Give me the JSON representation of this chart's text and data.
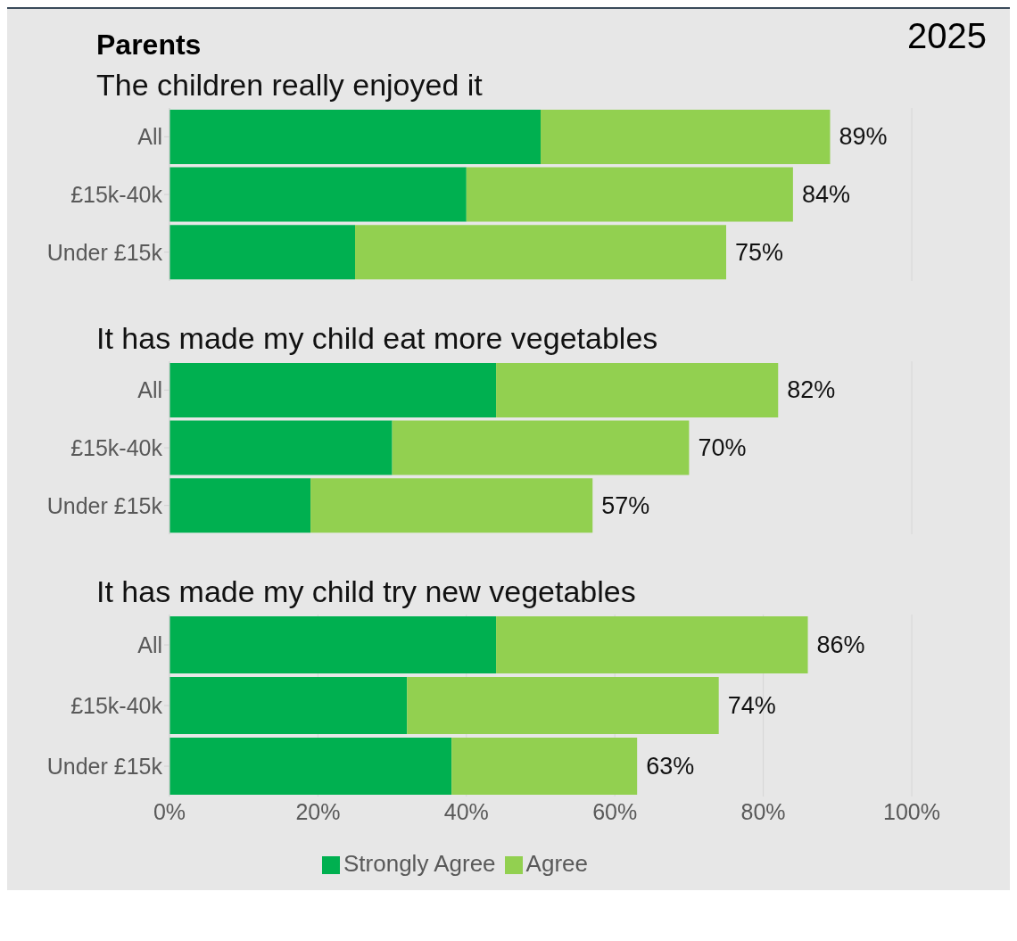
{
  "chart_data": [
    {
      "type": "bar",
      "orientation": "horizontal",
      "stacked": true,
      "title": "The children really enjoyed it",
      "annotations": [
        "Parents",
        "2025"
      ],
      "categories": [
        "All",
        "£15k-40k",
        "Under £15k"
      ],
      "series": [
        {
          "color": "#00b050",
          "values": [
            50,
            40,
            25
          ]
        },
        {
          "color": "#92d050",
          "values": [
            39,
            44,
            50
          ]
        }
      ],
      "totals": [
        "89%",
        "84%",
        "75%"
      ],
      "xlim": [
        0,
        100
      ],
      "xticks": [
        {
          "value": 0,
          "label": null
        },
        {
          "value": 20,
          "label": null
        },
        {
          "value": 40,
          "label": null
        },
        {
          "value": 60,
          "label": null
        },
        {
          "value": 80,
          "label": null
        },
        {
          "value": 100,
          "label": null
        }
      ],
      "grid": "x",
      "tick_labels": "y",
      "legend": false
    },
    {
      "type": "bar",
      "orientation": "horizontal",
      "stacked": true,
      "title": "It has made my child eat more vegetables",
      "categories": [
        "All",
        "£15k-40k",
        "Under £15k"
      ],
      "series": [
        {
          "color": "#00b050",
          "values": [
            44,
            30,
            19
          ]
        },
        {
          "color": "#92d050",
          "values": [
            38,
            40,
            38
          ]
        }
      ],
      "totals": [
        "82%",
        "70%",
        "57%"
      ],
      "xlim": [
        0,
        100
      ],
      "xticks": [
        {
          "value": 0,
          "label": null
        },
        {
          "value": 20,
          "label": null
        },
        {
          "value": 40,
          "label": null
        },
        {
          "value": 60,
          "label": null
        },
        {
          "value": 80,
          "label": null
        },
        {
          "value": 100,
          "label": null
        }
      ],
      "grid": "x",
      "tick_labels": "y",
      "legend": false
    },
    {
      "type": "bar",
      "orientation": "horizontal",
      "stacked": true,
      "title": "It has made my child try new vegetables",
      "categories": [
        "All",
        "£15k-40k",
        "Under £15k"
      ],
      "series": [
        {
          "name": "Strongly Agree",
          "color": "#00b050",
          "values": [
            44,
            32,
            38
          ]
        },
        {
          "name": "Agree",
          "color": "#92d050",
          "values": [
            42,
            42,
            25
          ]
        }
      ],
      "totals": [
        "86%",
        "74%",
        "63%"
      ],
      "xlim": [
        0,
        100
      ],
      "xticks": [
        {
          "value": 0,
          "label": "0%"
        },
        {
          "value": 20,
          "label": "20%"
        },
        {
          "value": 40,
          "label": "40%"
        },
        {
          "value": 60,
          "label": "60%"
        },
        {
          "value": 80,
          "label": "80%"
        },
        {
          "value": 100,
          "label": "100%"
        }
      ],
      "grid": "x",
      "legend": "bottom"
    }
  ]
}
